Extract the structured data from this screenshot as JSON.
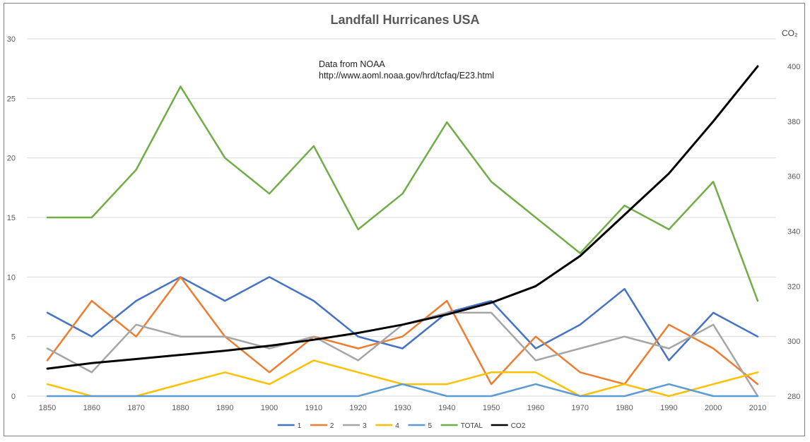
{
  "chart_data": {
    "type": "line",
    "title": "Landfall Hurricanes USA",
    "annotation": {
      "line1": "Data from NOAA",
      "line2": "http://www.aoml.noaa.gov/hrd/tcfaq/E23.html"
    },
    "x": [
      "1850",
      "1860",
      "1870",
      "1880",
      "1890",
      "1900",
      "1910",
      "1920",
      "1930",
      "1940",
      "1950",
      "1960",
      "1970",
      "1980",
      "1990",
      "2000",
      "2010"
    ],
    "ylim": [
      0,
      30
    ],
    "yticks": [
      "0",
      "5",
      "10",
      "15",
      "20",
      "25",
      "30"
    ],
    "y2label": "CO₂",
    "y2lim": [
      280,
      410
    ],
    "y2ticks": [
      "280",
      "300",
      "320",
      "340",
      "360",
      "380",
      "400"
    ],
    "grid": true,
    "legend_position": "bottom",
    "series": [
      {
        "name": "1",
        "color": "#4472c4",
        "axis": "left",
        "values": [
          7,
          5,
          8,
          10,
          8,
          10,
          8,
          5,
          4,
          7,
          8,
          4,
          6,
          9,
          3,
          7,
          5
        ]
      },
      {
        "name": "2",
        "color": "#ed7d31",
        "axis": "left",
        "values": [
          3,
          8,
          5,
          10,
          5,
          2,
          5,
          4,
          5,
          8,
          1,
          5,
          2,
          1,
          6,
          4,
          1
        ]
      },
      {
        "name": "3",
        "color": "#a5a5a5",
        "axis": "left",
        "values": [
          4,
          2,
          6,
          5,
          5,
          4,
          5,
          3,
          6,
          7,
          7,
          3,
          4,
          5,
          4,
          6,
          0
        ]
      },
      {
        "name": "4",
        "color": "#ffc000",
        "axis": "left",
        "values": [
          1,
          0,
          0,
          1,
          2,
          1,
          3,
          2,
          1,
          1,
          2,
          2,
          0,
          1,
          0,
          1,
          2
        ]
      },
      {
        "name": "5",
        "color": "#5b9bd5",
        "axis": "left",
        "values": [
          0,
          0,
          0,
          0,
          0,
          0,
          0,
          0,
          1,
          0,
          0,
          1,
          0,
          0,
          1,
          0,
          0
        ]
      },
      {
        "name": "TOTAL",
        "color": "#70ad47",
        "axis": "left",
        "values": [
          15,
          15,
          19,
          26,
          20,
          17,
          21,
          14,
          17,
          23,
          18,
          15,
          12,
          16,
          14,
          18,
          8
        ]
      },
      {
        "name": "CO2",
        "color": "#000000",
        "axis": "right",
        "values": [
          290,
          292,
          293.5,
          295,
          296.5,
          298.3,
          300.5,
          303,
          306,
          309.7,
          314,
          320,
          331,
          346,
          361,
          380,
          400
        ]
      }
    ]
  }
}
